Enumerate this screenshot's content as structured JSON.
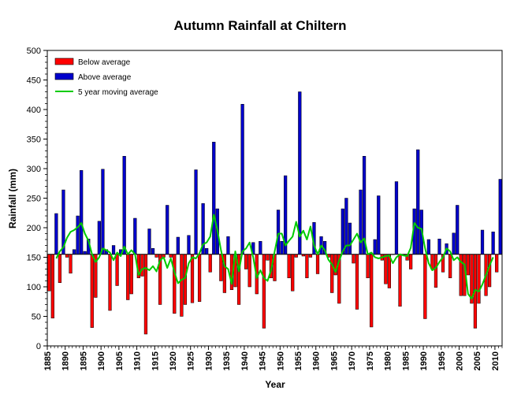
{
  "chart_data": {
    "type": "bar",
    "title": "Autumn Rainfall at Chiltern",
    "xlabel": "Year",
    "ylabel": "Rainfall (mm)",
    "baseline": 155,
    "ylim": [
      0,
      500
    ],
    "yticks": [
      0,
      50,
      100,
      150,
      200,
      250,
      300,
      350,
      400,
      450,
      500
    ],
    "xlim": [
      1885,
      2012
    ],
    "xticks": [
      1885,
      1890,
      1895,
      1900,
      1905,
      1910,
      1915,
      1920,
      1925,
      1930,
      1935,
      1940,
      1945,
      1950,
      1955,
      1960,
      1965,
      1970,
      1975,
      1980,
      1985,
      1990,
      1995,
      2000,
      2005,
      2010
    ],
    "legend": {
      "position": "top-left",
      "entries": [
        {
          "label": "Below average",
          "color": "#ff0000"
        },
        {
          "label": "Above average",
          "color": "#0000cc"
        },
        {
          "label": "5 year moving average",
          "color": "#00cc00"
        }
      ]
    },
    "colors": {
      "below": "#ff0000",
      "above": "#0000cc",
      "moving_average": "#00cc00"
    },
    "years": [
      1885,
      1886,
      1887,
      1888,
      1889,
      1890,
      1891,
      1892,
      1893,
      1894,
      1895,
      1896,
      1897,
      1898,
      1899,
      1900,
      1901,
      1902,
      1903,
      1904,
      1905,
      1906,
      1907,
      1908,
      1909,
      1910,
      1911,
      1912,
      1913,
      1914,
      1915,
      1916,
      1917,
      1918,
      1919,
      1920,
      1921,
      1922,
      1923,
      1924,
      1925,
      1926,
      1927,
      1928,
      1929,
      1930,
      1931,
      1932,
      1933,
      1934,
      1935,
      1936,
      1937,
      1938,
      1939,
      1940,
      1941,
      1942,
      1943,
      1944,
      1945,
      1946,
      1947,
      1948,
      1949,
      1950,
      1951,
      1952,
      1953,
      1954,
      1955,
      1956,
      1957,
      1958,
      1959,
      1960,
      1961,
      1962,
      1963,
      1964,
      1965,
      1966,
      1967,
      1968,
      1969,
      1970,
      1971,
      1972,
      1973,
      1974,
      1975,
      1976,
      1977,
      1978,
      1979,
      1980,
      1981,
      1982,
      1983,
      1984,
      1985,
      1986,
      1987,
      1988,
      1989,
      1990,
      1991,
      1992,
      1993,
      1994,
      1995,
      1996,
      1997,
      1998,
      1999,
      2000,
      2001,
      2002,
      2003,
      2004,
      2005,
      2006,
      2007,
      2008,
      2009,
      2010,
      2011
    ],
    "rainfall": [
      93,
      47,
      224,
      107,
      264,
      150,
      123,
      163,
      220,
      297,
      160,
      181,
      31,
      82,
      211,
      299,
      163,
      60,
      170,
      102,
      163,
      321,
      78,
      88,
      216,
      115,
      118,
      20,
      198,
      165,
      150,
      70,
      150,
      238,
      150,
      55,
      184,
      50,
      70,
      187,
      73,
      298,
      75,
      241,
      165,
      125,
      345,
      232,
      110,
      90,
      185,
      95,
      100,
      70,
      409,
      130,
      100,
      175,
      88,
      177,
      30,
      145,
      115,
      110,
      230,
      177,
      288,
      115,
      93,
      150,
      430,
      152,
      115,
      150,
      209,
      122,
      185,
      177,
      150,
      90,
      120,
      72,
      232,
      250,
      208,
      140,
      62,
      264,
      321,
      115,
      32,
      180,
      254,
      145,
      105,
      98,
      155,
      278,
      67,
      155,
      145,
      130,
      232,
      332,
      230,
      46,
      180,
      130,
      99,
      181,
      125,
      173,
      115,
      191,
      238,
      85,
      85,
      120,
      72,
      30,
      72,
      196,
      85,
      100,
      193,
      125,
      282
    ],
    "moving_average": [
      null,
      null,
      148,
      160,
      167,
      183,
      193,
      196,
      201,
      208,
      190,
      178,
      155,
      142,
      150,
      165,
      162,
      158,
      145,
      158,
      152,
      168,
      155,
      162,
      155,
      120,
      130,
      132,
      128,
      135,
      126,
      145,
      150,
      132,
      148,
      125,
      106,
      112,
      115,
      140,
      150,
      148,
      157,
      172,
      175,
      185,
      222,
      196,
      162,
      135,
      130,
      105,
      160,
      126,
      160,
      165,
      175,
      150,
      115,
      128,
      115,
      110,
      128,
      160,
      190,
      190,
      170,
      178,
      185,
      210,
      185,
      195,
      180,
      202,
      170,
      155,
      170,
      162,
      146,
      138,
      125,
      144,
      160,
      170,
      170,
      180,
      190,
      175,
      182,
      155,
      158,
      150,
      148,
      150,
      152,
      153,
      140,
      150,
      155,
      153,
      152,
      166,
      208,
      200,
      198,
      165,
      140,
      128,
      132,
      142,
      150,
      165,
      160,
      145,
      150,
      142,
      138,
      88,
      80,
      95,
      92,
      104,
      120,
      136,
      150,
      null
    ]
  }
}
